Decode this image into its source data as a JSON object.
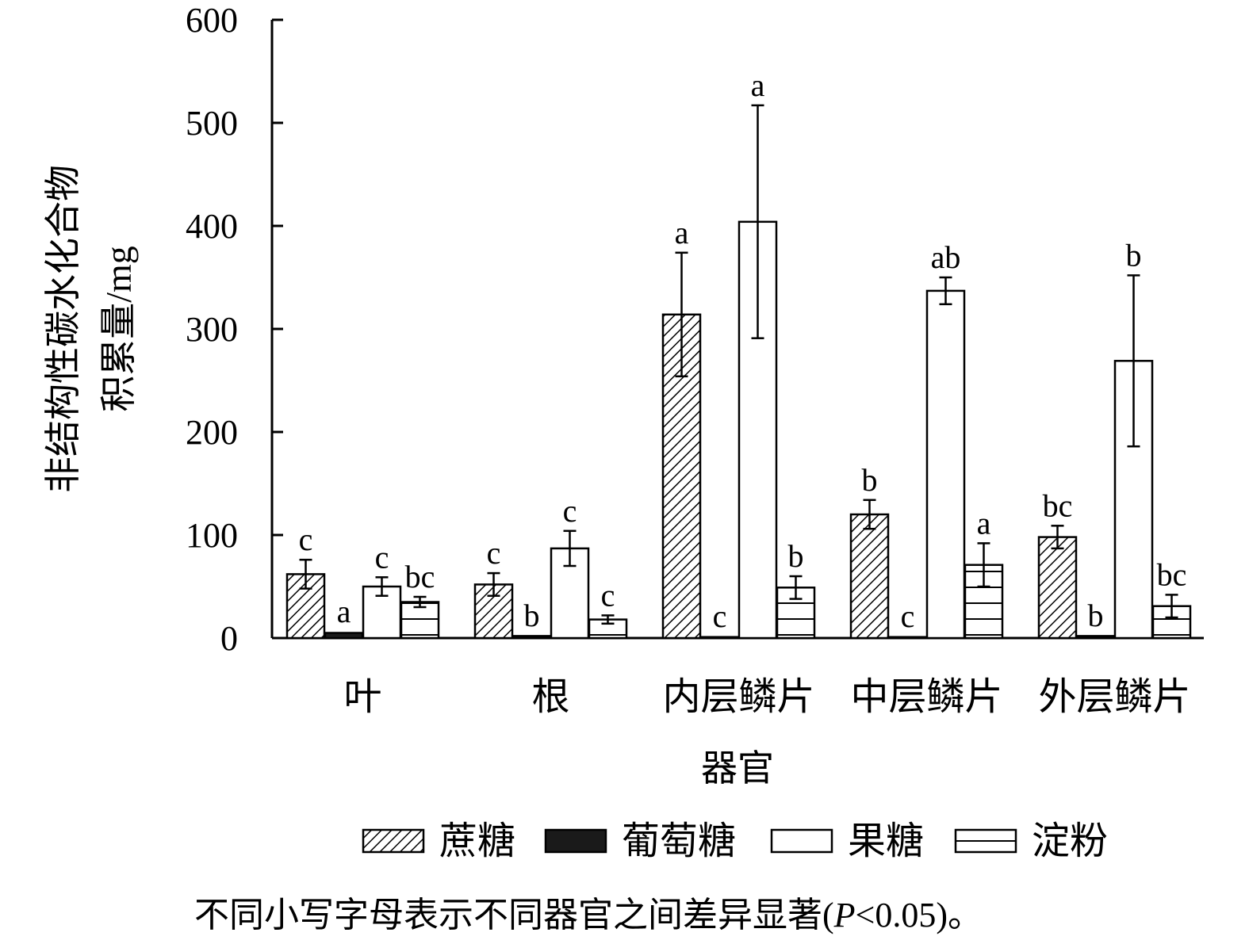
{
  "chart_data": {
    "type": "bar",
    "title": "",
    "xlabel": "器官",
    "ylabel_line1": "非结构性碳水化合物",
    "ylabel_line2": "积累量/mg",
    "ylim": [
      0,
      600
    ],
    "yticks": [
      0,
      100,
      200,
      300,
      400,
      500,
      600
    ],
    "categories": [
      "叶",
      "根",
      "内层鳞片",
      "中层鳞片",
      "外层鳞片"
    ],
    "legend_position": "bottom",
    "series": [
      {
        "name": "蔗糖",
        "pattern": "diagonal",
        "values": [
          62,
          52,
          314,
          120,
          98
        ],
        "errors": [
          14,
          11,
          60,
          14,
          11
        ],
        "letters": [
          "c",
          "c",
          "a",
          "b",
          "bc"
        ]
      },
      {
        "name": "葡萄糖",
        "pattern": "solid",
        "values": [
          5,
          2,
          1,
          1,
          2
        ],
        "errors": [
          1,
          0.5,
          0.5,
          0.5,
          0.5
        ],
        "letters": [
          "a",
          "b",
          "c",
          "c",
          "b"
        ]
      },
      {
        "name": "果糖",
        "pattern": "white",
        "values": [
          50,
          87,
          404,
          337,
          269
        ],
        "errors": [
          9,
          17,
          113,
          13,
          83
        ],
        "letters": [
          "c",
          "c",
          "a",
          "ab",
          "b"
        ]
      },
      {
        "name": "淀粉",
        "pattern": "horizontal",
        "values": [
          35,
          18,
          49,
          71,
          31
        ],
        "errors": [
          5,
          4,
          11,
          21,
          11
        ],
        "letters": [
          "bc",
          "c",
          "b",
          "a",
          "bc"
        ]
      }
    ],
    "colors": {
      "bar_stroke": "#000000",
      "glucose_fill": "#1a1a1a",
      "background": "#ffffff"
    }
  },
  "footnote": {
    "prefix": "不同小写字母表示不同器官之间差异显著(",
    "italic": "P",
    "suffix": "<0.05)。"
  }
}
